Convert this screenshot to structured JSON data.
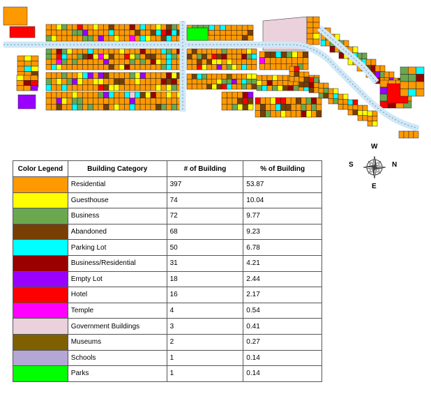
{
  "legend": {
    "headers": [
      "Color Legend",
      "Building Category",
      "# of Building",
      "% of Building"
    ],
    "rows": [
      {
        "color": "#ff9900",
        "category": "Residential",
        "count": "397",
        "percent": "53.87"
      },
      {
        "color": "#ffff00",
        "category": "Guesthouse",
        "count": "74",
        "percent": "10.04"
      },
      {
        "color": "#6aa84f",
        "category": "Business",
        "count": "72",
        "percent": "9.77"
      },
      {
        "color": "#783f04",
        "category": "Abandoned",
        "count": "68",
        "percent": "9.23"
      },
      {
        "color": "#00ffff",
        "category": "Parking Lot",
        "count": "50",
        "percent": "6.78"
      },
      {
        "color": "#990000",
        "category": "Business/Residential",
        "count": "31",
        "percent": "4.21"
      },
      {
        "color": "#9900ff",
        "category": "Empty Lot",
        "count": "18",
        "percent": "2.44"
      },
      {
        "color": "#ff0000",
        "category": "Hotel",
        "count": "16",
        "percent": "2.17"
      },
      {
        "color": "#ff00ff",
        "category": "Temple",
        "count": "4",
        "percent": "0.54"
      },
      {
        "color": "#ead1dc",
        "category": "Government Buildings",
        "count": "3",
        "percent": "0.41"
      },
      {
        "color": "#7f6000",
        "category": "Museums",
        "count": "2",
        "percent": "0.27"
      },
      {
        "color": "#b4a7d6",
        "category": "Schools",
        "count": "1",
        "percent": "0.14"
      },
      {
        "color": "#00ff00",
        "category": "Parks",
        "count": "1",
        "percent": "0.14"
      }
    ]
  },
  "compass": {
    "west": "W",
    "east": "E",
    "south": "S",
    "north": "N"
  }
}
